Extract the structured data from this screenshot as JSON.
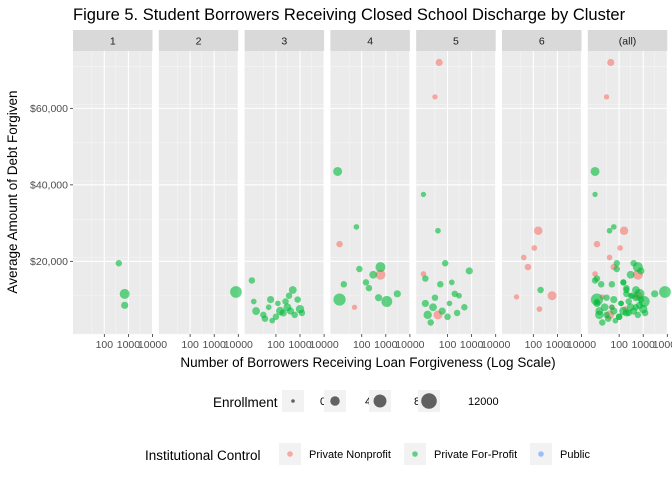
{
  "chart_data": {
    "type": "scatter",
    "title": "Figure 5. Student Borrowers Receiving Closed School Discharge by Cluster",
    "xlabel": "Number of Borrowers Receiving Loan Forgiveness (Log Scale)",
    "ylabel": "Average Amount of Debt Forgiven",
    "x_scale": "log10",
    "xlim": [
      5,
      10000
    ],
    "x_ticks": [
      100,
      1000,
      10000
    ],
    "x_tick_labels": [
      "100",
      "1000",
      "10000"
    ],
    "ylim": [
      1000,
      75000
    ],
    "y_ticks": [
      20000,
      40000,
      60000
    ],
    "y_tick_labels": [
      "$20,000",
      "$40,000",
      "$60,000"
    ],
    "grid": true,
    "panels": [
      "1",
      "2",
      "3",
      "4",
      "5",
      "6",
      "(all)"
    ],
    "size_legend": {
      "title": "Enrollment",
      "values": [
        0,
        4000,
        8000,
        12000
      ],
      "labels": [
        "0",
        "4000",
        "8000",
        "12000"
      ]
    },
    "color_legend": {
      "title": "Institutional Control",
      "entries": [
        {
          "name": "Private Nonprofit",
          "color": "#F8766D"
        },
        {
          "name": "Private For-Profit",
          "color": "#00BA38"
        },
        {
          "name": "Public",
          "color": "#619CFF"
        }
      ]
    },
    "legend_position": "bottom",
    "series": [
      {
        "name": "Private Nonprofit",
        "color": "#F8766D",
        "points": [
          {
            "panel": "4",
            "x": 12,
            "y": 24500,
            "size": 1500
          },
          {
            "panel": "4",
            "x": 50,
            "y": 8000,
            "size": 800
          },
          {
            "panel": "4",
            "x": 600,
            "y": 16500,
            "size": 4500
          },
          {
            "panel": "5",
            "x": 10,
            "y": 16700,
            "size": 1000
          },
          {
            "panel": "5",
            "x": 30,
            "y": 63000,
            "size": 800
          },
          {
            "panel": "5",
            "x": 45,
            "y": 72000,
            "size": 2000
          },
          {
            "panel": "5",
            "x": 40,
            "y": 6000,
            "size": 3500
          },
          {
            "panel": "6",
            "x": 20,
            "y": 10700,
            "size": 800
          },
          {
            "panel": "6",
            "x": 40,
            "y": 21000,
            "size": 1000
          },
          {
            "panel": "6",
            "x": 60,
            "y": 18500,
            "size": 1500
          },
          {
            "panel": "6",
            "x": 110,
            "y": 23500,
            "size": 1000
          },
          {
            "panel": "6",
            "x": 160,
            "y": 28000,
            "size": 3000
          },
          {
            "panel": "6",
            "x": 180,
            "y": 7500,
            "size": 1000
          },
          {
            "panel": "6",
            "x": 600,
            "y": 11000,
            "size": 3500
          }
        ]
      },
      {
        "name": "Private For-Profit",
        "color": "#00BA38",
        "points": [
          {
            "panel": "1",
            "x": 400,
            "y": 19500,
            "size": 1500
          },
          {
            "panel": "1",
            "x": 700,
            "y": 11500,
            "size": 4500
          },
          {
            "panel": "1",
            "x": 700,
            "y": 8500,
            "size": 2000
          },
          {
            "panel": "2",
            "x": 8000,
            "y": 12000,
            "size": 6500
          },
          {
            "panel": "3",
            "x": 10,
            "y": 15000,
            "size": 1500
          },
          {
            "panel": "3",
            "x": 12,
            "y": 9500,
            "size": 1000
          },
          {
            "panel": "3",
            "x": 15,
            "y": 7000,
            "size": 2500
          },
          {
            "panel": "3",
            "x": 30,
            "y": 6000,
            "size": 1500
          },
          {
            "panel": "3",
            "x": 35,
            "y": 5000,
            "size": 1500
          },
          {
            "panel": "3",
            "x": 50,
            "y": 8000,
            "size": 1000
          },
          {
            "panel": "3",
            "x": 60,
            "y": 10000,
            "size": 2000
          },
          {
            "panel": "3",
            "x": 70,
            "y": 4500,
            "size": 1000
          },
          {
            "panel": "3",
            "x": 100,
            "y": 5500,
            "size": 1500
          },
          {
            "panel": "3",
            "x": 120,
            "y": 9000,
            "size": 1000
          },
          {
            "panel": "3",
            "x": 150,
            "y": 7000,
            "size": 3000
          },
          {
            "panel": "3",
            "x": 200,
            "y": 6500,
            "size": 2000
          },
          {
            "panel": "3",
            "x": 250,
            "y": 9500,
            "size": 1500
          },
          {
            "panel": "3",
            "x": 300,
            "y": 8000,
            "size": 2500
          },
          {
            "panel": "3",
            "x": 350,
            "y": 11000,
            "size": 1500
          },
          {
            "panel": "3",
            "x": 400,
            "y": 7000,
            "size": 2000
          },
          {
            "panel": "3",
            "x": 500,
            "y": 12500,
            "size": 2500
          },
          {
            "panel": "3",
            "x": 600,
            "y": 6000,
            "size": 1500
          },
          {
            "panel": "3",
            "x": 800,
            "y": 10000,
            "size": 1500
          },
          {
            "panel": "3",
            "x": 1000,
            "y": 7500,
            "size": 3000
          },
          {
            "panel": "3",
            "x": 1200,
            "y": 6500,
            "size": 1500
          },
          {
            "panel": "4",
            "x": 10,
            "y": 43500,
            "size": 3500
          },
          {
            "panel": "4",
            "x": 12,
            "y": 10000,
            "size": 7000
          },
          {
            "panel": "4",
            "x": 18,
            "y": 14000,
            "size": 1500
          },
          {
            "panel": "4",
            "x": 60,
            "y": 29000,
            "size": 1000
          },
          {
            "panel": "4",
            "x": 80,
            "y": 18000,
            "size": 1500
          },
          {
            "panel": "4",
            "x": 150,
            "y": 14500,
            "size": 1500
          },
          {
            "panel": "4",
            "x": 200,
            "y": 13000,
            "size": 1500
          },
          {
            "panel": "4",
            "x": 300,
            "y": 16500,
            "size": 2500
          },
          {
            "panel": "4",
            "x": 500,
            "y": 10500,
            "size": 2000
          },
          {
            "panel": "4",
            "x": 600,
            "y": 18500,
            "size": 4500
          },
          {
            "panel": "4",
            "x": 1100,
            "y": 9500,
            "size": 5500
          },
          {
            "panel": "4",
            "x": 3000,
            "y": 11500,
            "size": 2000
          },
          {
            "panel": "5",
            "x": 10,
            "y": 37500,
            "size": 800
          },
          {
            "panel": "5",
            "x": 12,
            "y": 15500,
            "size": 1500
          },
          {
            "panel": "5",
            "x": 12,
            "y": 9000,
            "size": 2000
          },
          {
            "panel": "5",
            "x": 15,
            "y": 6000,
            "size": 3000
          },
          {
            "panel": "5",
            "x": 20,
            "y": 4000,
            "size": 1500
          },
          {
            "panel": "5",
            "x": 25,
            "y": 8000,
            "size": 2500
          },
          {
            "panel": "5",
            "x": 30,
            "y": 10500,
            "size": 1500
          },
          {
            "panel": "5",
            "x": 40,
            "y": 28000,
            "size": 1000
          },
          {
            "panel": "5",
            "x": 50,
            "y": 14000,
            "size": 1500
          },
          {
            "panel": "5",
            "x": 60,
            "y": 7000,
            "size": 2000
          },
          {
            "panel": "5",
            "x": 80,
            "y": 19500,
            "size": 1500
          },
          {
            "panel": "5",
            "x": 100,
            "y": 5500,
            "size": 1500
          },
          {
            "panel": "5",
            "x": 120,
            "y": 9000,
            "size": 1000
          },
          {
            "panel": "5",
            "x": 150,
            "y": 14500,
            "size": 1000
          },
          {
            "panel": "5",
            "x": 200,
            "y": 11500,
            "size": 1500
          },
          {
            "panel": "5",
            "x": 250,
            "y": 6500,
            "size": 1500
          },
          {
            "panel": "5",
            "x": 300,
            "y": 11000,
            "size": 1000
          },
          {
            "panel": "5",
            "x": 500,
            "y": 8000,
            "size": 1500
          },
          {
            "panel": "5",
            "x": 800,
            "y": 17500,
            "size": 2000
          },
          {
            "panel": "6",
            "x": 200,
            "y": 12500,
            "size": 1500
          }
        ]
      },
      {
        "name": "Public",
        "color": "#619CFF",
        "points": []
      }
    ]
  }
}
